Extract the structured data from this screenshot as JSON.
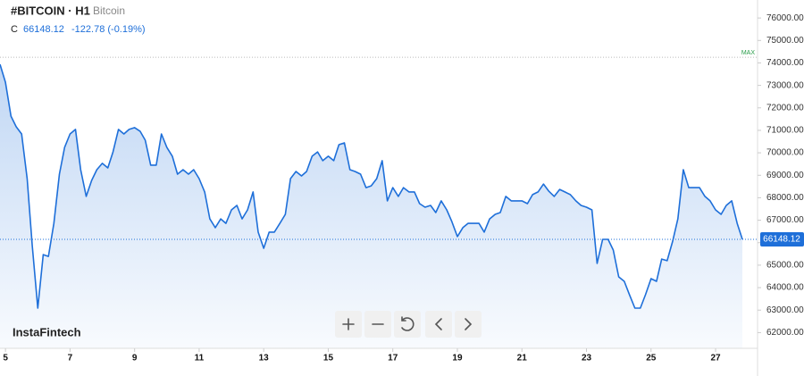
{
  "header": {
    "symbol": "#BITCOIN · H1",
    "name": "Bitcoin",
    "price_label": "C",
    "change": "-122.78 (-0.19%)"
  },
  "watermark": "InstaFintech",
  "chart_data": {
    "type": "area",
    "color": "#1e6fd9",
    "x": [
      4.83,
      5.0,
      5.17,
      5.33,
      5.5,
      5.67,
      5.83,
      6.0,
      6.17,
      6.33,
      6.5,
      6.67,
      6.83,
      7.0,
      7.17,
      7.33,
      7.5,
      7.67,
      7.83,
      8.0,
      8.17,
      8.33,
      8.5,
      8.67,
      8.83,
      9.0,
      9.17,
      9.33,
      9.5,
      9.67,
      9.83,
      10.0,
      10.17,
      10.33,
      10.5,
      10.67,
      10.83,
      11.0,
      11.17,
      11.33,
      11.5,
      11.67,
      11.83,
      12.0,
      12.17,
      12.33,
      12.5,
      12.67,
      12.83,
      13.0,
      13.17,
      13.33,
      13.5,
      13.67,
      13.83,
      14.0,
      14.17,
      14.33,
      14.5,
      14.67,
      14.83,
      15.0,
      15.17,
      15.33,
      15.5,
      15.67,
      15.83,
      16.0,
      16.17,
      16.33,
      16.5,
      16.67,
      16.83,
      17.0,
      17.17,
      17.33,
      17.5,
      17.67,
      17.83,
      18.0,
      18.17,
      18.33,
      18.5,
      18.67,
      18.83,
      19.0,
      19.17,
      19.33,
      19.5,
      19.67,
      19.83,
      20.0,
      20.17,
      20.33,
      20.5,
      20.67,
      20.83,
      21.0,
      21.17,
      21.33,
      21.5,
      21.67,
      21.83,
      22.0,
      22.17,
      22.33,
      22.5,
      22.67,
      22.83,
      23.0,
      23.17,
      23.33,
      23.5,
      23.67,
      23.83,
      24.0,
      24.17,
      24.33,
      24.5,
      24.67,
      24.83,
      25.0,
      25.17,
      25.33,
      25.5,
      25.67,
      25.83,
      26.0,
      26.17,
      26.33,
      26.5,
      26.67,
      26.83,
      27.0,
      27.17,
      27.33,
      27.5,
      27.67,
      27.83
    ],
    "values": [
      73940,
      73140,
      71630,
      71160,
      70840,
      68850,
      65870,
      63090,
      65470,
      65390,
      66860,
      69050,
      70240,
      70840,
      71040,
      69250,
      68060,
      68770,
      69250,
      69530,
      69330,
      70040,
      71040,
      70840,
      71040,
      71120,
      70960,
      70560,
      69450,
      69450,
      70840,
      70240,
      69850,
      69050,
      69250,
      69050,
      69250,
      68850,
      68260,
      67060,
      66670,
      67060,
      66860,
      67460,
      67660,
      67060,
      67460,
      68260,
      66470,
      65750,
      66470,
      66470,
      66860,
      67260,
      68850,
      69170,
      68970,
      69170,
      69850,
      70040,
      69650,
      69850,
      69650,
      70360,
      70440,
      69250,
      69170,
      69050,
      68450,
      68530,
      68850,
      69650,
      67860,
      68450,
      68060,
      68450,
      68260,
      68260,
      67740,
      67580,
      67660,
      67340,
      67860,
      67460,
      66940,
      66270,
      66670,
      66860,
      66860,
      66860,
      66470,
      67060,
      67260,
      67340,
      68060,
      67860,
      67860,
      67860,
      67740,
      68140,
      68260,
      68610,
      68300,
      68060,
      68370,
      68260,
      68140,
      67860,
      67660,
      67580,
      67460,
      65080,
      66150,
      66150,
      65670,
      64480,
      64280,
      63690,
      63090,
      63090,
      63690,
      64400,
      64280,
      65270,
      65200,
      66070,
      67060,
      69250,
      68450,
      68450,
      68450,
      68060,
      67860,
      67460,
      67260,
      67660,
      67860,
      66860,
      66148.12
    ],
    "last_value": 66148.12,
    "max_line": {
      "label": "MAX",
      "value": 74250
    },
    "xlim": [
      4.83,
      28.3
    ],
    "xticks": [
      5,
      7,
      9,
      11,
      13,
      15,
      17,
      19,
      21,
      23,
      25,
      27
    ],
    "ylim": [
      61300,
      76800
    ],
    "yticks": [
      {
        "value": 62000,
        "label": "62000.00"
      },
      {
        "value": 63000,
        "label": "63000.00"
      },
      {
        "value": 64000,
        "label": "64000.00"
      },
      {
        "value": 65000,
        "label": "65000.00"
      },
      {
        "value": 66000,
        "label": "66000.00"
      },
      {
        "value": 67000,
        "label": "67000.00"
      },
      {
        "value": 68000,
        "label": "68000.00"
      },
      {
        "value": 69000,
        "label": "69000.00"
      },
      {
        "value": 70000,
        "label": "70000.00"
      },
      {
        "value": 71000,
        "label": "71000.00"
      },
      {
        "value": 72000,
        "label": "72000.00"
      },
      {
        "value": 73000,
        "label": "73000.00"
      },
      {
        "value": 74000,
        "label": "74000.00"
      },
      {
        "value": 75000,
        "label": "75000.00"
      },
      {
        "value": 76000,
        "label": "76000.00"
      }
    ]
  }
}
